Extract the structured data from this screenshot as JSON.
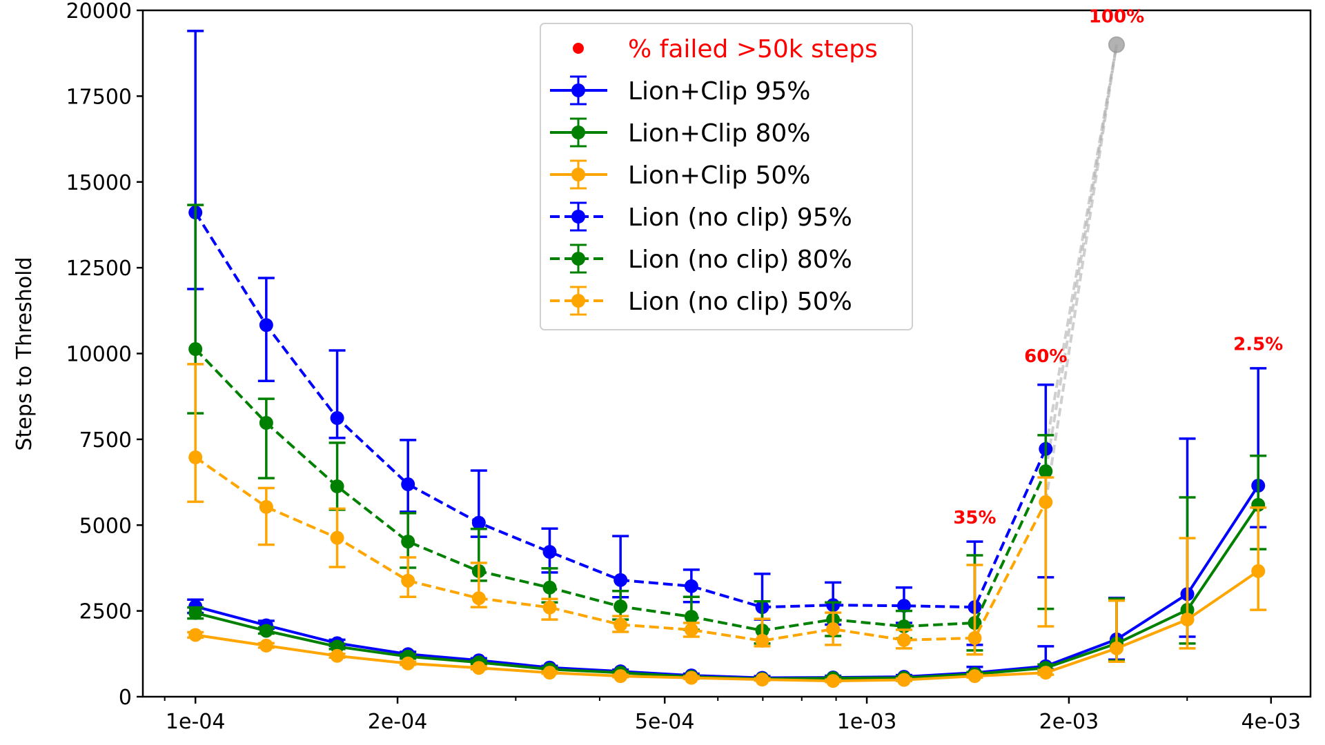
{
  "chart_data": {
    "type": "line",
    "title": "",
    "xlabel": "",
    "ylabel": "Steps to Threshold",
    "xscale": "log",
    "xlim": [
      8.35e-05,
      0.00458
    ],
    "ylim": [
      0,
      20000
    ],
    "grid": false,
    "x_major_ticks": [
      {
        "value": 0.0001,
        "label": "1e-04"
      },
      {
        "value": 0.0002,
        "label": "2e-04"
      },
      {
        "value": 0.0005,
        "label": "5e-04"
      },
      {
        "value": 0.001,
        "label": "1e-03"
      },
      {
        "value": 0.002,
        "label": "2e-03"
      },
      {
        "value": 0.004,
        "label": "4e-03"
      }
    ],
    "x_minor_ticks": [
      9e-05,
      0.0003,
      0.0004,
      0.0006,
      0.0007,
      0.0008,
      0.0009,
      0.003
    ],
    "y_ticks": [
      {
        "value": 0,
        "label": "0"
      },
      {
        "value": 2500,
        "label": "2500"
      },
      {
        "value": 5000,
        "label": "5000"
      },
      {
        "value": 7500,
        "label": "7500"
      },
      {
        "value": 10000,
        "label": "10000"
      },
      {
        "value": 12500,
        "label": "12500"
      },
      {
        "value": 15000,
        "label": "15000"
      },
      {
        "value": 17500,
        "label": "17500"
      },
      {
        "value": 20000,
        "label": "20000"
      }
    ],
    "x": [
      0.0001,
      0.0001275,
      0.0001626,
      0.0002073,
      0.0002643,
      0.000337,
      0.0004297,
      0.0005479,
      0.0006986,
      0.0008907,
      0.001136,
      0.001448,
      0.001847,
      0.002355,
      0.003002,
      0.003828
    ],
    "series": [
      {
        "name": "Lion+Clip 95%",
        "color": "#0000ff",
        "dash": "solid",
        "values": [
          2630,
          2080,
          1560,
          1240,
          1060,
          850,
          740,
          620,
          550,
          560,
          580,
          700,
          890,
          1670,
          2990,
          6150
        ],
        "err_low": [
          2440,
          1980,
          1480,
          1180,
          1000,
          800,
          690,
          580,
          510,
          520,
          540,
          640,
          800,
          1080,
          1750,
          4940
        ],
        "err_high": [
          2830,
          2210,
          1660,
          1310,
          1120,
          900,
          790,
          670,
          600,
          610,
          630,
          870,
          1470,
          2880,
          7520,
          9570
        ]
      },
      {
        "name": "Lion+Clip 80%",
        "color": "#008000",
        "dash": "solid",
        "values": [
          2440,
          1920,
          1460,
          1170,
          1000,
          800,
          700,
          580,
          520,
          540,
          550,
          660,
          840,
          1550,
          2530,
          5590
        ],
        "err_low": [
          2280,
          1840,
          1390,
          1110,
          950,
          760,
          660,
          540,
          490,
          500,
          510,
          610,
          770,
          1050,
          1550,
          4300
        ],
        "err_high": [
          2600,
          2020,
          1540,
          1240,
          1060,
          850,
          740,
          620,
          560,
          580,
          590,
          720,
          940,
          2860,
          5810,
          7020
        ]
      },
      {
        "name": "Lion+Clip 50%",
        "color": "#ffa500",
        "dash": "solid",
        "values": [
          1800,
          1490,
          1190,
          970,
          840,
          700,
          600,
          550,
          500,
          460,
          490,
          600,
          700,
          1410,
          2250,
          3660
        ],
        "err_low": [
          1720,
          1430,
          1140,
          930,
          800,
          670,
          570,
          520,
          470,
          430,
          460,
          560,
          640,
          1020,
          1410,
          2530
        ],
        "err_high": [
          1880,
          1560,
          1250,
          1020,
          890,
          740,
          640,
          590,
          530,
          500,
          530,
          650,
          780,
          2800,
          4620,
          5510
        ]
      },
      {
        "name": "Lion (no clip) 95%",
        "color": "#0000ff",
        "dash": "dashed",
        "values": [
          14110,
          10830,
          8120,
          6190,
          5070,
          4220,
          3400,
          3220,
          2610,
          2670,
          2650,
          2610,
          7220,
          null,
          null,
          null
        ],
        "err_low": [
          11880,
          9200,
          7540,
          5390,
          4660,
          3620,
          2900,
          2760,
          2250,
          2100,
          2150,
          1510,
          3480,
          null,
          null,
          null
        ],
        "err_high": [
          19400,
          12200,
          10090,
          7480,
          6590,
          4900,
          4680,
          3700,
          3580,
          3330,
          3180,
          4520,
          9090,
          null,
          null,
          null
        ]
      },
      {
        "name": "Lion (no clip) 80%",
        "color": "#008000",
        "dash": "dashed",
        "values": [
          10130,
          7980,
          6130,
          4520,
          3660,
          3180,
          2630,
          2330,
          1930,
          2250,
          2050,
          2150,
          6570,
          null,
          null,
          null
        ],
        "err_low": [
          8260,
          6370,
          5450,
          3760,
          3380,
          2750,
          2250,
          1950,
          1550,
          1770,
          1700,
          1350,
          2560,
          null,
          null,
          null
        ],
        "err_high": [
          14330,
          8680,
          7400,
          5350,
          4890,
          3740,
          3080,
          2910,
          2780,
          2750,
          2500,
          4120,
          7620,
          null,
          null,
          null
        ]
      },
      {
        "name": "Lion (no clip) 50%",
        "color": "#ffa500",
        "dash": "dashed",
        "values": [
          6975,
          5530,
          4630,
          3380,
          2870,
          2600,
          2100,
          1950,
          1630,
          1970,
          1650,
          1710,
          5670,
          null,
          null,
          null
        ],
        "err_low": [
          5680,
          4430,
          3780,
          2910,
          2610,
          2250,
          1890,
          1750,
          1470,
          1510,
          1410,
          1230,
          2050,
          null,
          null,
          null
        ],
        "err_high": [
          9690,
          6080,
          5480,
          4060,
          3900,
          2850,
          2350,
          2150,
          2270,
          2450,
          1950,
          3840,
          6390,
          null,
          null,
          null
        ]
      }
    ],
    "failed_point": {
      "x": 0.002355,
      "y": 19000,
      "color": "#a0a0a0",
      "connects_from_index": 12
    },
    "annotations": [
      {
        "text": "35%",
        "x": 0.001448,
        "y": 5050,
        "color": "#ff0000"
      },
      {
        "text": "60%",
        "x": 0.001847,
        "y": 9750,
        "color": "#ff0000"
      },
      {
        "text": "100%",
        "x": 0.002355,
        "y": 19650,
        "color": "#ff0000"
      },
      {
        "text": "2.5%",
        "x": 0.003828,
        "y": 10100,
        "color": "#ff0000"
      }
    ],
    "legend": {
      "placement": "upper-center",
      "entries": [
        {
          "label": "% failed >50k steps",
          "color": "#ff0000",
          "kind": "dot"
        },
        {
          "label": "Lion+Clip 95%",
          "color": "#0000ff",
          "kind": "solid"
        },
        {
          "label": "Lion+Clip 80%",
          "color": "#008000",
          "kind": "solid"
        },
        {
          "label": "Lion+Clip 50%",
          "color": "#ffa500",
          "kind": "solid"
        },
        {
          "label": "Lion (no clip) 95%",
          "color": "#0000ff",
          "kind": "dashed"
        },
        {
          "label": "Lion (no clip) 80%",
          "color": "#008000",
          "kind": "dashed"
        },
        {
          "label": "Lion (no clip) 50%",
          "color": "#ffa500",
          "kind": "dashed"
        }
      ]
    }
  }
}
